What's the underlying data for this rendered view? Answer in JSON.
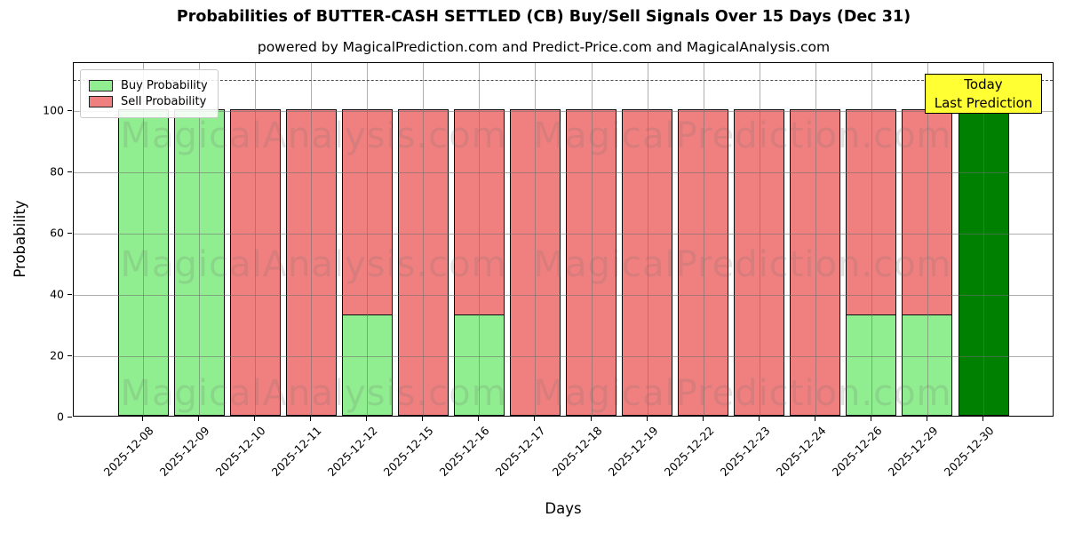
{
  "header": {
    "title": "Probabilities of BUTTER-CASH SETTLED (CB) Buy/Sell Signals Over 15 Days (Dec 31)",
    "subtitle": "powered by MagicalPrediction.com and Predict-Price.com and MagicalAnalysis.com"
  },
  "watermarks": {
    "left_text": "MagicalAnalysis.com",
    "right_text": "MagicalPrediction.com"
  },
  "today_box": {
    "line1": "Today",
    "line2": "Last Prediction"
  },
  "colors": {
    "buy": "#90ee90",
    "sell": "#f08080",
    "today": "#008000",
    "today_box_bg": "#ffff33"
  },
  "chart_data": {
    "type": "bar",
    "stacked": true,
    "title": "Probabilities of BUTTER-CASH SETTLED (CB) Buy/Sell Signals Over 15 Days (Dec 31)",
    "xlabel": "Days",
    "ylabel": "Probability",
    "categories": [
      "2025-12-08",
      "2025-12-09",
      "2025-12-10",
      "2025-12-11",
      "2025-12-12",
      "2025-12-15",
      "2025-12-16",
      "2025-12-17",
      "2025-12-18",
      "2025-12-19",
      "2025-12-22",
      "2025-12-23",
      "2025-12-24",
      "2025-12-26",
      "2025-12-29",
      "2025-12-30"
    ],
    "series": [
      {
        "name": "Buy Probability",
        "color": "#90ee90",
        "values": [
          100,
          100,
          0,
          0,
          33,
          0,
          33,
          0,
          0,
          0,
          0,
          0,
          0,
          33,
          33,
          0
        ]
      },
      {
        "name": "Sell Probability",
        "color": "#f08080",
        "values": [
          0,
          0,
          100,
          100,
          67,
          100,
          67,
          100,
          100,
          100,
          100,
          100,
          100,
          67,
          67,
          0
        ]
      },
      {
        "name": "Today Last Prediction",
        "color": "#008000",
        "values": [
          0,
          0,
          0,
          0,
          0,
          0,
          0,
          0,
          0,
          0,
          0,
          0,
          0,
          0,
          0,
          100
        ]
      }
    ],
    "yticks": [
      0,
      20,
      40,
      60,
      80,
      100
    ],
    "ylim": [
      0,
      115.5
    ],
    "dashed_line_y": 110,
    "grid": true,
    "legend_position": "upper left"
  }
}
